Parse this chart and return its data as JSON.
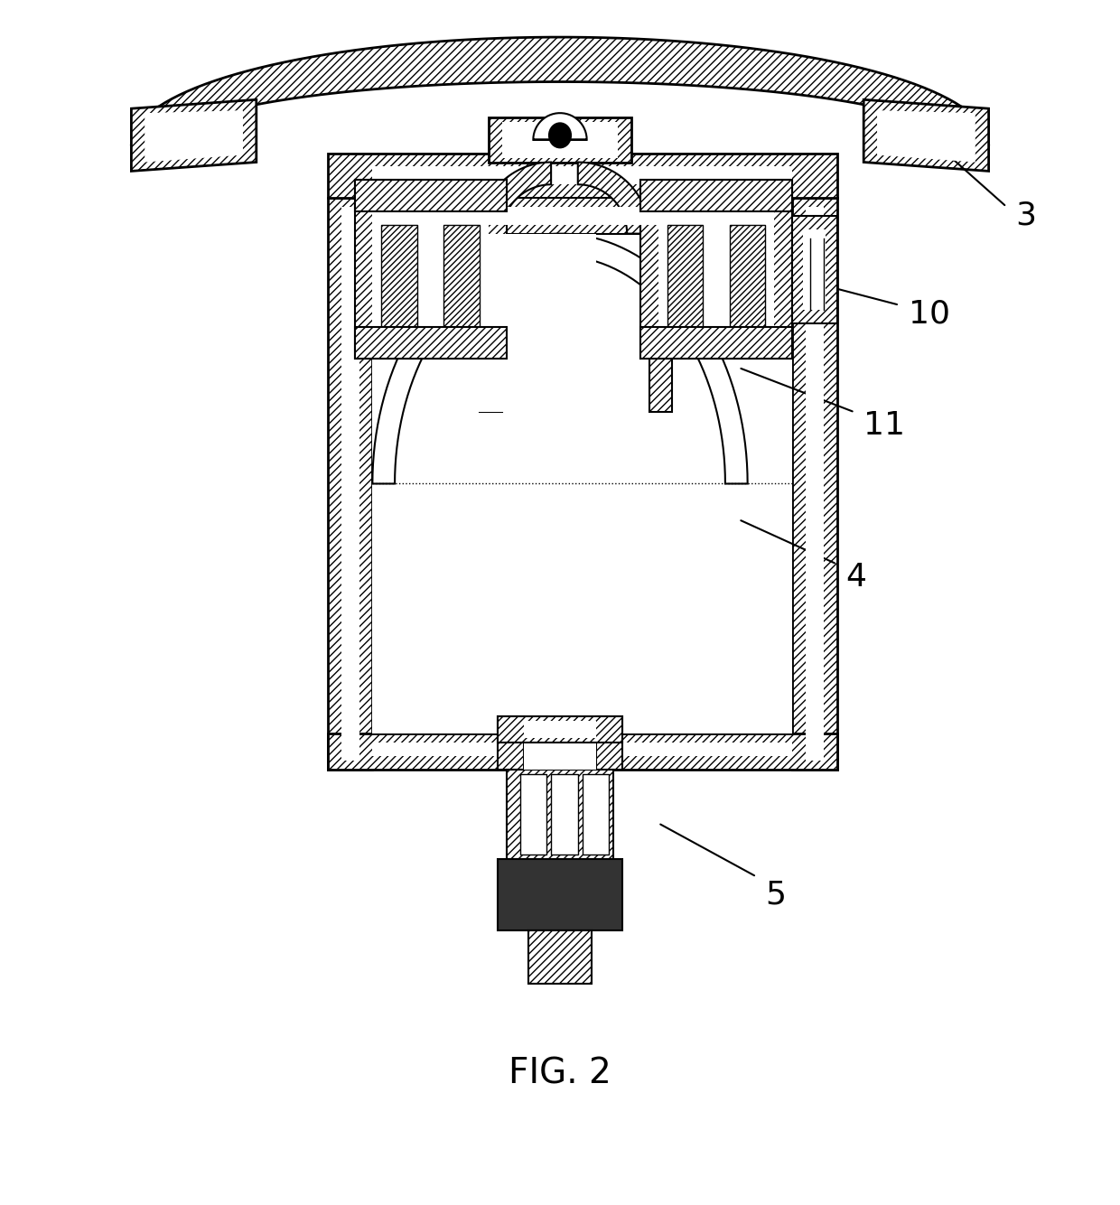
{
  "title": "FIG. 2",
  "title_fontsize": 28,
  "bg_color": "#ffffff",
  "label_3": "3",
  "label_4": "4",
  "label_5": "5",
  "label_10": "10",
  "label_11": "11",
  "label_fontsize": 26,
  "hatch_density": "////"
}
